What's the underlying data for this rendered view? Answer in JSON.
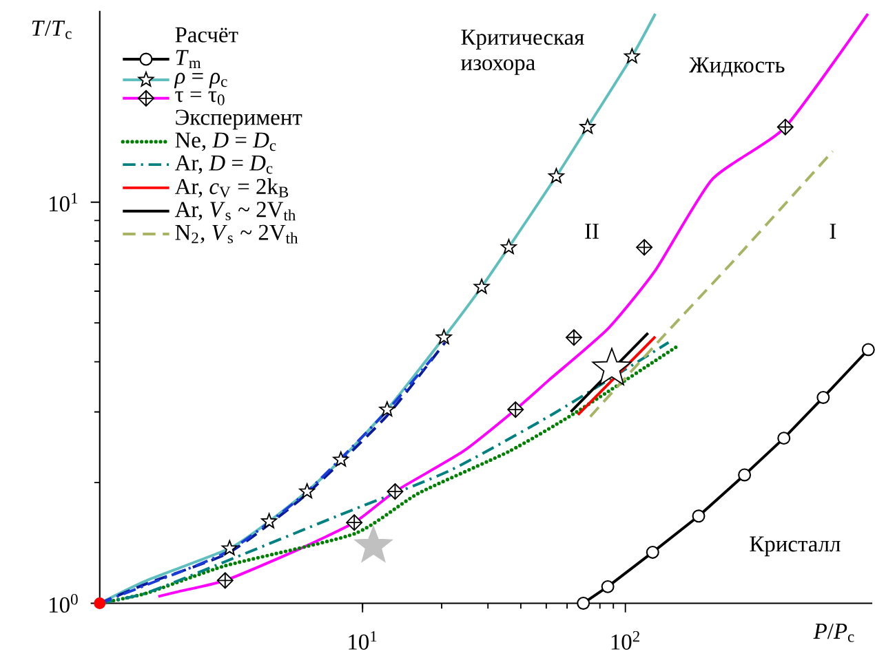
{
  "chart_data": {
    "type": "line",
    "xlabel": "*P*/*P*$_{c}$",
    "ylabel": "*T*/*T*$_{c}$",
    "legend_title": "Расчёт",
    "annotations": [
      "Эксперимент",
      "Критическая изохора",
      "Жидкость",
      "II",
      "I",
      "Кристалл"
    ],
    "log": "xy",
    "legend": "top left",
    "xlim": [
      1,
      870
    ],
    "ylim": [
      1,
      30
    ],
    "xticks": [
      {
        "value": 10,
        "label": "10$^{1}$"
      },
      {
        "value": 100,
        "label": "10$^{2}$"
      }
    ],
    "yticks": [
      {
        "value": 1,
        "label": "10$^{0}$"
      },
      {
        "value": 10,
        "label": "10$^{1}$"
      }
    ],
    "series": [
      {
        "name": "*T*$_{m}$",
        "color": "#000000",
        "marker": "circle",
        "x": [
          69.2,
          85.7,
          127,
          190,
          284,
          401,
          566,
          840
        ],
        "values": [
          1.0,
          1.1,
          1.34,
          1.65,
          2.09,
          2.58,
          3.26,
          4.29
        ]
      },
      {
        "color": "#5fbfbf",
        "marker": "none",
        "x": [
          1,
          1.51,
          3.12,
          4.41,
          6.15,
          8.27,
          12.4,
          20.4,
          28.4,
          36.0,
          54.6,
          71.8,
          106,
          130
        ],
        "values": [
          1,
          1.14,
          1.37,
          1.6,
          1.9,
          2.28,
          3.04,
          4.6,
          6.15,
          7.72,
          11.6,
          15.4,
          23.1,
          29.5
        ]
      },
      {
        "name": "*ρ* = *ρ*$_{c}$",
        "type": "scatter",
        "color": "#000000",
        "marker": "star",
        "x": [
          3.12,
          4.41,
          6.15,
          8.27,
          12.4,
          20.4,
          28.4,
          36.0,
          54.6,
          71.8,
          106
        ],
        "values": [
          1.37,
          1.6,
          1.9,
          2.28,
          3.04,
          4.6,
          6.15,
          7.72,
          11.6,
          15.4,
          23.1
        ]
      },
      {
        "color": "#ff00ff",
        "marker": "none",
        "x": [
          1.67,
          2.0,
          3.0,
          5.4,
          9.3,
          13.3,
          24.1,
          38.2,
          51.4,
          85.7,
          130,
          214,
          406,
          837
        ],
        "values": [
          1.04,
          1.07,
          1.14,
          1.34,
          1.59,
          1.9,
          2.39,
          3.04,
          3.61,
          4.83,
          6.76,
          11.4,
          15.4,
          29.5
        ]
      },
      {
        "name": "τ = τ$_{0}$",
        "type": "scatter",
        "color": "#000000",
        "marker": "diamond",
        "x": [
          3.0,
          9.3,
          13.3,
          38.2,
          63.7,
          118,
          406
        ],
        "values": [
          1.14,
          1.59,
          1.9,
          3.04,
          4.6,
          7.72,
          15.4
        ]
      },
      {
        "name": "Ne, *D* = *D*$_{c}$",
        "color": "#008000",
        "line_style": "dotted",
        "x": [
          1,
          1.51,
          3.0,
          9.3,
          16.3,
          36,
          63.7,
          159
        ],
        "values": [
          1,
          1.06,
          1.24,
          1.49,
          1.88,
          2.39,
          2.97,
          4.39
        ]
      },
      {
        "name": "Ar, *D* = *D*$_{c}$",
        "color": "#008080",
        "line_style": "dashdot",
        "x": [
          1,
          1.5,
          3.0,
          8.0,
          21.4,
          53.3,
          146
        ],
        "values": [
          1,
          1.06,
          1.27,
          1.65,
          2.14,
          2.97,
          4.47
        ]
      },
      {
        "name": "Ar, *c*$_{V}$ = 2k$_{B}$",
        "color": "#ff0000",
        "x": [
          66,
          130
        ],
        "values": [
          2.95,
          4.62
        ]
      },
      {
        "name": "Ar, *V*$_{s}$ ~ 2V$_{th}$",
        "color": "#000000",
        "x": [
          62,
          122
        ],
        "values": [
          3.0,
          4.72
        ]
      },
      {
        "name": "N$_{2}$, *V*$_{s}$ ~ 2V$_{th}$",
        "color": "#a8b464",
        "line_style": "dashed",
        "x": [
          73.5,
          141,
          258,
          615
        ],
        "values": [
          2.92,
          4.67,
          7.14,
          13.4
        ]
      },
      {
        "color": "#0a1a9a",
        "line_style": "dashed",
        "x": [
          1,
          1.51,
          3.12,
          6.06,
          12.3,
          20.6
        ],
        "values": [
          1,
          1.12,
          1.34,
          1.86,
          2.92,
          4.47
        ]
      },
      {
        "color": "#1a3cd8",
        "line_style": "dashdot",
        "x": [
          1,
          1.5,
          3.1,
          6.0,
          12.0,
          18.5
        ],
        "values": [
          1,
          1.11,
          1.35,
          1.87,
          2.95,
          4.1
        ]
      },
      {
        "type": "scatter",
        "color": "#ff0000",
        "marker": "circle",
        "x": [
          1
        ],
        "values": [
          1
        ]
      },
      {
        "type": "scatter",
        "color": "#c0c0c0",
        "marker": "star",
        "x": [
          11.0
        ],
        "values": [
          1.39
        ]
      },
      {
        "type": "scatter",
        "color": "#ffffff",
        "marker": "star",
        "x": [
          88.8
        ],
        "values": [
          3.85
        ]
      }
    ]
  }
}
